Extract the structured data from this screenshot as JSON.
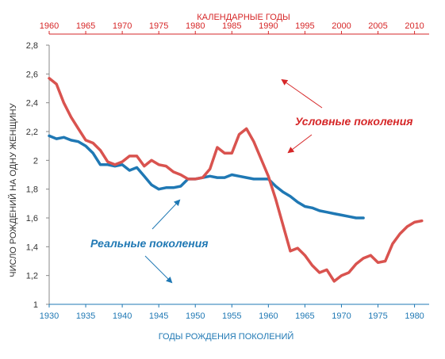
{
  "chart_data": {
    "type": "line",
    "ylabel": "ЧИСЛО РОЖДЕНИЙ НА ОДНУ ЖЕНЩИНУ",
    "ylim": [
      1,
      2.8
    ],
    "yticks": [
      1,
      1.2,
      1.4,
      1.6,
      1.8,
      2,
      2.2,
      2.4,
      2.6,
      2.8
    ],
    "ytick_labels": [
      "1",
      "1,2",
      "1,4",
      "1,6",
      "1,8",
      "2",
      "2,2",
      "2,4",
      "2,6",
      "2,8"
    ],
    "bottom_axis": {
      "label": "ГОДЫ РОЖДЕНИЯ ПОКОЛЕНИЙ",
      "range": [
        1930,
        1982
      ],
      "ticks": [
        1930,
        1935,
        1940,
        1945,
        1950,
        1955,
        1960,
        1965,
        1970,
        1975,
        1980
      ],
      "color": "#1f78b4"
    },
    "top_axis": {
      "label": "КАЛЕНДАРНЫЕ ГОДЫ",
      "range": [
        1960,
        2012
      ],
      "ticks": [
        1960,
        1965,
        1970,
        1975,
        1980,
        1985,
        1990,
        1995,
        2000,
        2005,
        2010
      ],
      "color": "#d62728"
    },
    "grid": false,
    "series": [
      {
        "name": "Реальные поколения",
        "axis": "bottom",
        "color": "#1f78b4",
        "x": [
          1930,
          1931,
          1932,
          1933,
          1934,
          1935,
          1936,
          1937,
          1938,
          1939,
          1940,
          1941,
          1942,
          1943,
          1944,
          1945,
          1946,
          1947,
          1948,
          1949,
          1950,
          1951,
          1952,
          1953,
          1954,
          1955,
          1956,
          1957,
          1958,
          1959,
          1960,
          1961,
          1962,
          1963,
          1964,
          1965,
          1966,
          1967,
          1968,
          1969,
          1970,
          1971,
          1972,
          1973
        ],
        "values": [
          2.17,
          2.15,
          2.16,
          2.14,
          2.13,
          2.1,
          2.05,
          1.97,
          1.97,
          1.96,
          1.97,
          1.93,
          1.95,
          1.89,
          1.83,
          1.8,
          1.81,
          1.81,
          1.82,
          1.87,
          1.87,
          1.88,
          1.89,
          1.88,
          1.88,
          1.9,
          1.89,
          1.88,
          1.87,
          1.87,
          1.87,
          1.82,
          1.78,
          1.75,
          1.71,
          1.68,
          1.67,
          1.65,
          1.64,
          1.63,
          1.62,
          1.61,
          1.6,
          1.6
        ]
      },
      {
        "name": "Условные поколения",
        "axis": "top",
        "color": "#d9534f",
        "x": [
          1960,
          1961,
          1962,
          1963,
          1964,
          1965,
          1966,
          1967,
          1968,
          1969,
          1970,
          1971,
          1972,
          1973,
          1974,
          1975,
          1976,
          1977,
          1978,
          1979,
          1980,
          1981,
          1982,
          1983,
          1984,
          1985,
          1986,
          1987,
          1988,
          1989,
          1990,
          1991,
          1992,
          1993,
          1994,
          1995,
          1996,
          1997,
          1998,
          1999,
          2000,
          2001,
          2002,
          2003,
          2004,
          2005,
          2006,
          2007,
          2008,
          2009,
          2010,
          2011
        ],
        "values": [
          2.57,
          2.53,
          2.4,
          2.3,
          2.22,
          2.14,
          2.12,
          2.07,
          1.99,
          1.97,
          1.99,
          2.03,
          2.03,
          1.96,
          2.0,
          1.97,
          1.96,
          1.92,
          1.9,
          1.87,
          1.87,
          1.88,
          1.94,
          2.09,
          2.05,
          2.05,
          2.18,
          2.22,
          2.13,
          2.01,
          1.89,
          1.73,
          1.55,
          1.37,
          1.39,
          1.34,
          1.27,
          1.22,
          1.24,
          1.16,
          1.2,
          1.22,
          1.28,
          1.32,
          1.34,
          1.29,
          1.3,
          1.42,
          1.49,
          1.54,
          1.57,
          1.58
        ]
      }
    ],
    "annotations": [
      {
        "text": "Условные поколения",
        "color": "#d62728"
      },
      {
        "text": "Реальные поколения",
        "color": "#1f78b4"
      }
    ]
  }
}
